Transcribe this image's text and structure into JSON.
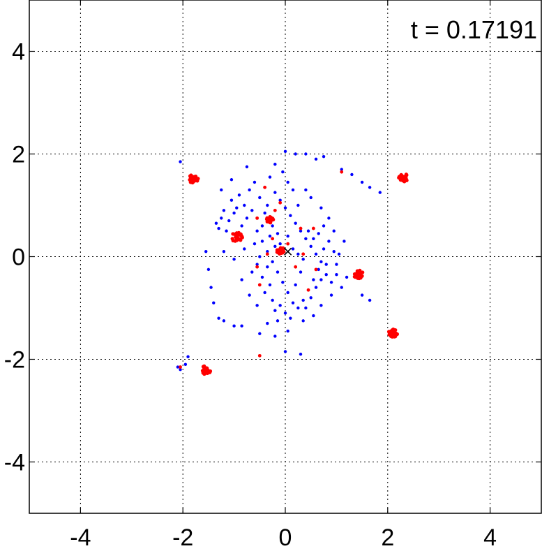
{
  "annotation": "t = 0.17191",
  "chart_data": {
    "type": "scatter",
    "title": "",
    "xlabel": "",
    "ylabel": "",
    "xlim": [
      -5,
      5
    ],
    "ylim": [
      -5,
      5
    ],
    "grid": true,
    "grid_style": "dotted",
    "x_ticks": [
      -4,
      -2,
      0,
      2,
      4
    ],
    "y_ticks": [
      -4,
      -2,
      0,
      2,
      4
    ],
    "tick_labels_x": [
      "-4",
      "-2",
      "0",
      "2",
      "4"
    ],
    "tick_labels_y": [
      "-4",
      "-2",
      "0",
      "2",
      "4"
    ],
    "annotation_text": "t = 0.17191",
    "center_marker": {
      "x": 0.05,
      "y": 0.1,
      "shape": "x",
      "color": "#000000"
    },
    "series": [
      {
        "color": "#0000ff",
        "role": "diffuse particles",
        "points": [
          [
            -1.35,
            0.65
          ],
          [
            -1.3,
            0.55
          ],
          [
            -1.25,
            0.75
          ],
          [
            -1.2,
            0.9
          ],
          [
            -1.15,
            0.5
          ],
          [
            -1.1,
            0.7
          ],
          [
            -1.05,
            1.1
          ],
          [
            -1.0,
            0.85
          ],
          [
            -0.95,
            0.95
          ],
          [
            -0.9,
            1.2
          ],
          [
            -0.85,
            0.6
          ],
          [
            -0.8,
            1.0
          ],
          [
            -0.75,
            0.75
          ],
          [
            -0.7,
            1.3
          ],
          [
            -0.65,
            0.9
          ],
          [
            -0.6,
            1.45
          ],
          [
            -0.55,
            0.5
          ],
          [
            -0.5,
            1.15
          ],
          [
            -0.45,
            0.3
          ],
          [
            -0.4,
            1.35
          ],
          [
            -0.35,
            0.1
          ],
          [
            -0.3,
            1.55
          ],
          [
            -0.25,
            -0.1
          ],
          [
            -0.2,
            1.25
          ],
          [
            -0.15,
            -0.3
          ],
          [
            -0.1,
            1.1
          ],
          [
            -0.05,
            -0.5
          ],
          [
            0.0,
            0.95
          ],
          [
            0.05,
            -0.7
          ],
          [
            0.1,
            0.8
          ],
          [
            0.15,
            -0.9
          ],
          [
            0.2,
            0.65
          ],
          [
            0.25,
            -1.0
          ],
          [
            0.3,
            0.5
          ],
          [
            0.35,
            -0.85
          ],
          [
            0.4,
            0.35
          ],
          [
            0.45,
            -0.65
          ],
          [
            0.5,
            0.2
          ],
          [
            0.55,
            -0.45
          ],
          [
            0.6,
            0.05
          ],
          [
            0.65,
            -0.25
          ],
          [
            0.7,
            -0.1
          ],
          [
            0.75,
            0.15
          ],
          [
            0.8,
            -0.35
          ],
          [
            0.85,
            0.3
          ],
          [
            0.9,
            -0.5
          ],
          [
            0.95,
            0.1
          ],
          [
            1.0,
            -0.15
          ],
          [
            -0.5,
            0.0
          ],
          [
            -0.45,
            -0.4
          ],
          [
            -0.4,
            -0.7
          ],
          [
            -0.35,
            -0.2
          ],
          [
            -0.3,
            -0.55
          ],
          [
            -0.25,
            -0.85
          ],
          [
            -0.2,
            -1.05
          ],
          [
            -0.1,
            -0.95
          ],
          [
            0.0,
            -1.1
          ],
          [
            0.1,
            -1.2
          ],
          [
            0.2,
            -0.55
          ],
          [
            0.3,
            -0.3
          ],
          [
            0.4,
            -1.0
          ],
          [
            0.5,
            -0.8
          ],
          [
            0.6,
            -0.6
          ],
          [
            0.7,
            -0.45
          ],
          [
            0.8,
            -0.15
          ],
          [
            -0.6,
            0.25
          ],
          [
            -0.55,
            -0.15
          ],
          [
            -0.5,
            -0.55
          ],
          [
            -0.45,
            0.6
          ],
          [
            -0.4,
            0.85
          ],
          [
            -0.35,
            1.0
          ],
          [
            -0.3,
            0.4
          ],
          [
            -0.25,
            0.6
          ],
          [
            -0.2,
            0.2
          ],
          [
            -0.15,
            0.45
          ],
          [
            -0.1,
            0.25
          ],
          [
            0.05,
            0.4
          ],
          [
            0.15,
            0.15
          ],
          [
            0.25,
            0.05
          ],
          [
            0.35,
            -0.05
          ],
          [
            0.45,
            0.5
          ],
          [
            0.55,
            0.35
          ],
          [
            0.65,
            0.45
          ],
          [
            0.75,
            0.6
          ],
          [
            0.25,
            1.0
          ],
          [
            0.15,
            1.3
          ],
          [
            0.05,
            1.45
          ],
          [
            -0.05,
            1.65
          ],
          [
            -0.2,
            1.8
          ],
          [
            0.0,
            2.05
          ],
          [
            0.2,
            2.0
          ],
          [
            0.4,
            2.0
          ],
          [
            0.6,
            1.9
          ],
          [
            0.75,
            1.95
          ],
          [
            1.1,
            1.7
          ],
          [
            1.3,
            1.6
          ],
          [
            1.5,
            1.45
          ],
          [
            1.65,
            1.35
          ],
          [
            1.85,
            1.25
          ],
          [
            -0.75,
            1.75
          ],
          [
            -1.05,
            1.5
          ],
          [
            -1.25,
            1.3
          ],
          [
            -1.2,
            0.1
          ],
          [
            -1.0,
            -0.05
          ],
          [
            -0.8,
            0.15
          ],
          [
            -0.65,
            -0.3
          ],
          [
            -0.85,
            -0.45
          ],
          [
            -1.55,
            0.1
          ],
          [
            -1.5,
            -0.25
          ],
          [
            -1.45,
            -0.6
          ],
          [
            -1.4,
            -0.9
          ],
          [
            -1.2,
            -1.25
          ],
          [
            -1.0,
            -1.35
          ],
          [
            -0.85,
            -1.35
          ],
          [
            -0.5,
            -1.5
          ],
          [
            -0.2,
            -1.55
          ],
          [
            0.3,
            -1.9
          ],
          [
            0.0,
            -1.85
          ],
          [
            1.65,
            -0.85
          ],
          [
            1.5,
            -0.75
          ],
          [
            1.2,
            -0.4
          ],
          [
            1.1,
            -0.6
          ],
          [
            1.05,
            0.05
          ],
          [
            1.15,
            0.3
          ],
          [
            0.7,
            0.95
          ],
          [
            0.85,
            0.75
          ],
          [
            0.5,
            1.15
          ],
          [
            0.4,
            1.3
          ],
          [
            -2.05,
            1.85
          ],
          [
            -1.9,
            -1.95
          ],
          [
            -2.05,
            -2.2
          ],
          [
            -2.1,
            -2.15
          ],
          [
            -1.95,
            -2.1
          ],
          [
            -1.3,
            -1.2
          ],
          [
            -0.7,
            -0.75
          ],
          [
            -0.55,
            -0.95
          ],
          [
            -0.35,
            -1.3
          ],
          [
            -0.15,
            -1.25
          ],
          [
            0.05,
            -1.45
          ],
          [
            0.35,
            -1.25
          ],
          [
            0.55,
            -1.15
          ],
          [
            0.7,
            -0.95
          ],
          [
            0.9,
            -0.75
          ],
          [
            1.0,
            -0.35
          ],
          [
            0.95,
            0.5
          ]
        ]
      },
      {
        "color": "#ff0000",
        "role": "clustered particles",
        "clusters": [
          {
            "x": -1.8,
            "y": 1.52,
            "r": 0.1
          },
          {
            "x": 2.3,
            "y": 1.54,
            "r": 0.1
          },
          {
            "x": -0.95,
            "y": 0.38,
            "r": 0.11
          },
          {
            "x": 1.43,
            "y": -0.34,
            "r": 0.1
          },
          {
            "x": 2.1,
            "y": -1.49,
            "r": 0.09
          },
          {
            "x": -1.55,
            "y": -2.21,
            "r": 0.1
          },
          {
            "x": -0.1,
            "y": 0.12,
            "r": 0.08
          },
          {
            "x": -0.3,
            "y": 0.72,
            "r": 0.07
          }
        ],
        "points": [
          [
            -0.4,
            1.35
          ],
          [
            -0.1,
            1.05
          ],
          [
            -0.55,
            0.75
          ],
          [
            0.3,
            0.55
          ],
          [
            0.55,
            0.55
          ],
          [
            -0.25,
            0.35
          ],
          [
            -0.55,
            -0.2
          ],
          [
            -0.5,
            -0.55
          ],
          [
            0.45,
            -0.65
          ],
          [
            0.2,
            -0.2
          ],
          [
            1.1,
            1.65
          ],
          [
            -0.5,
            -1.93
          ],
          [
            -2.05,
            -2.15
          ],
          [
            0.05,
            0.25
          ],
          [
            -0.2,
            0.9
          ],
          [
            0.35,
            0.05
          ],
          [
            0.6,
            -0.25
          ],
          [
            -0.35,
            0.05
          ]
        ]
      }
    ]
  }
}
